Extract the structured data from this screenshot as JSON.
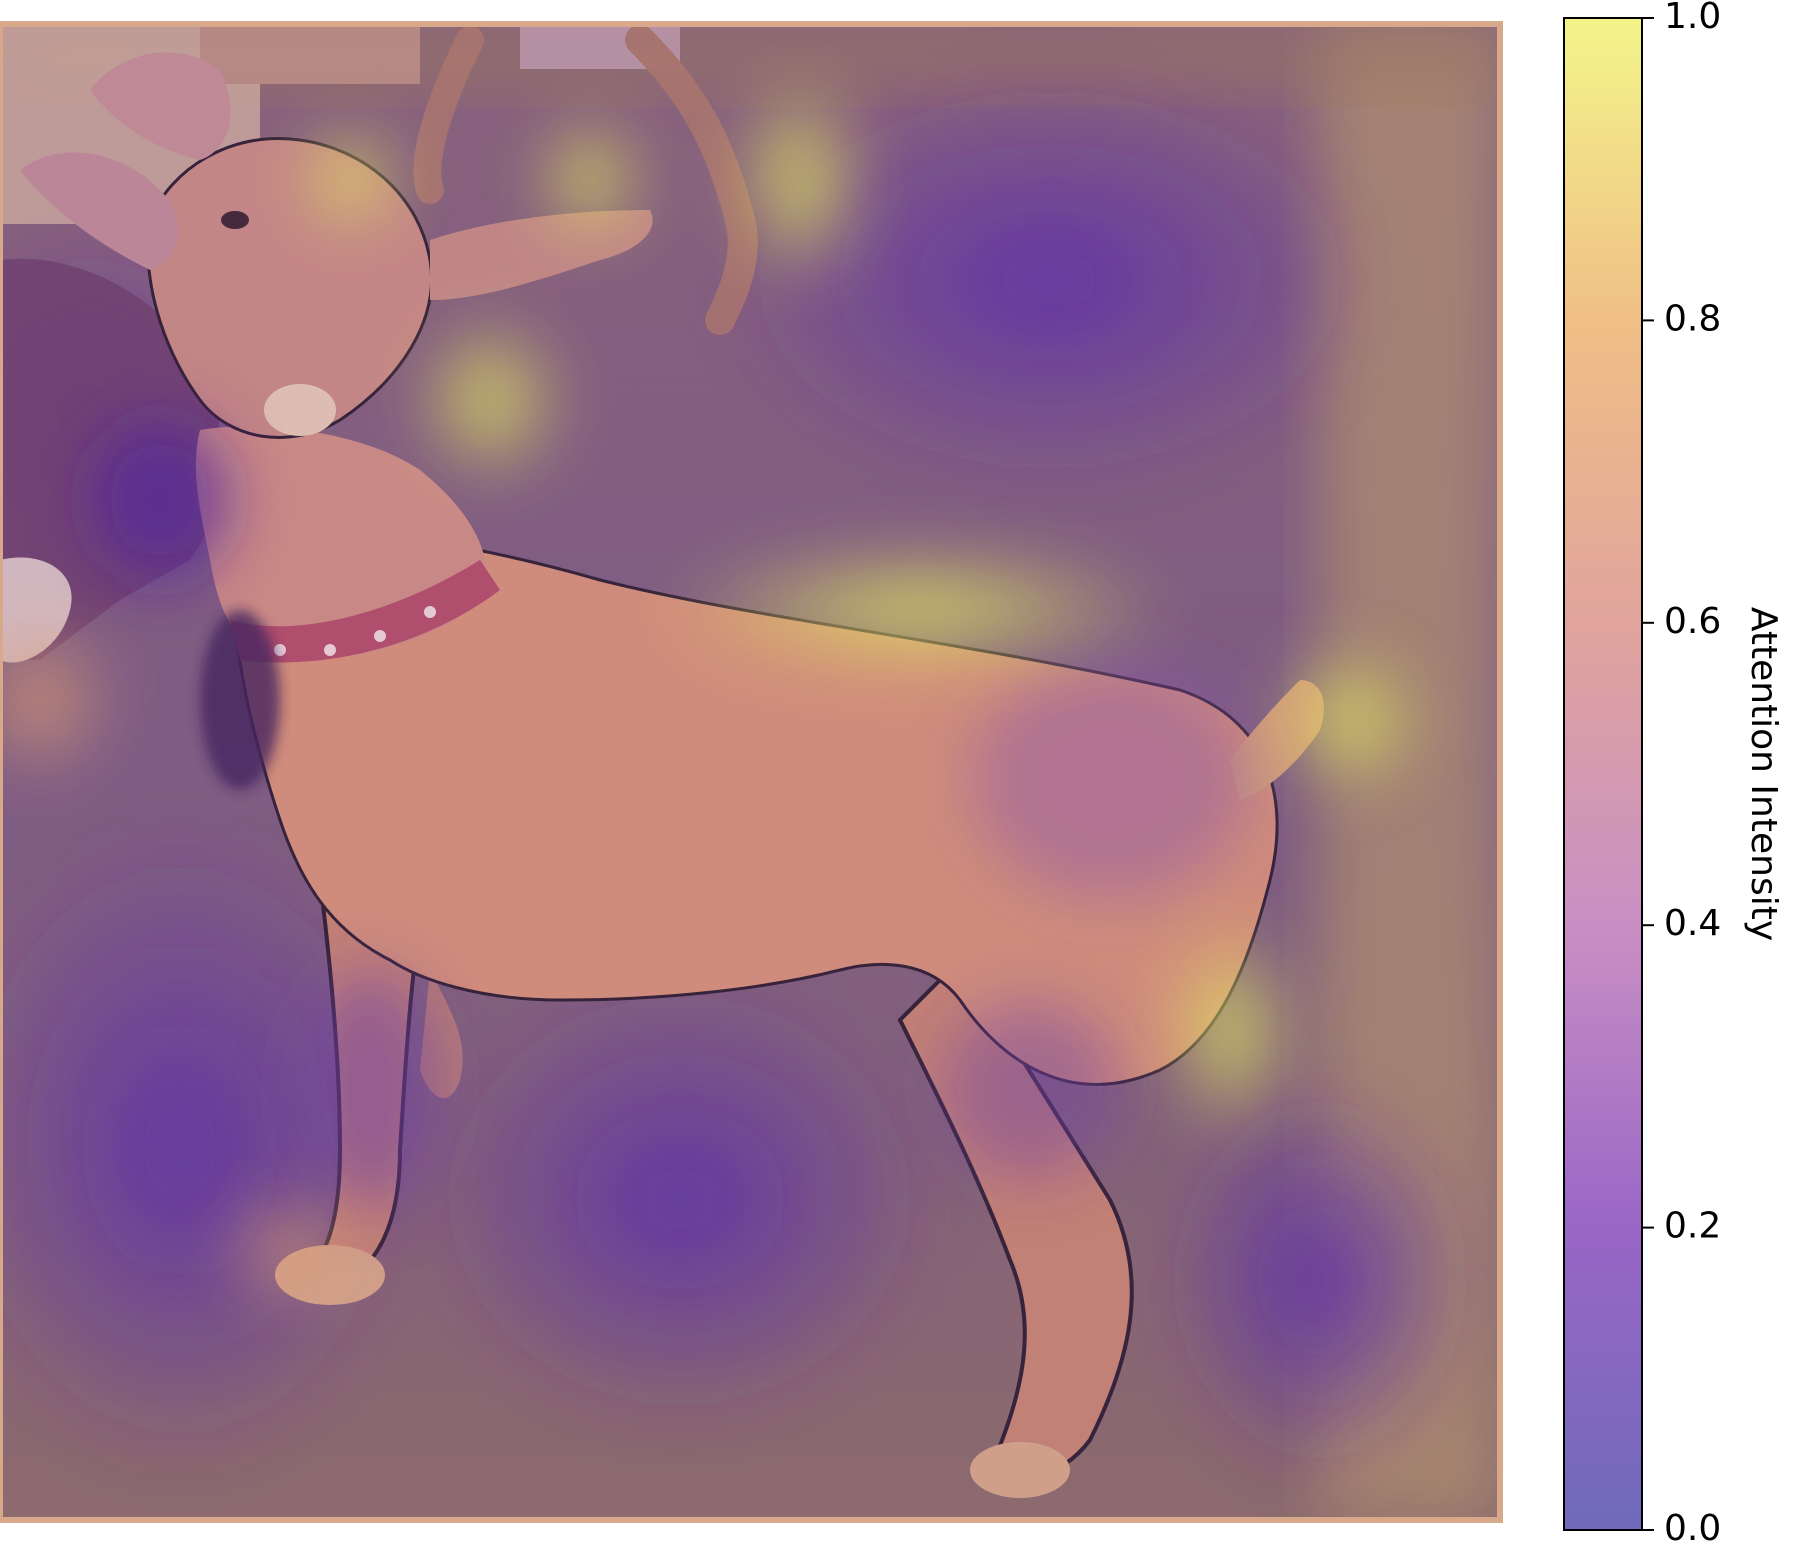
{
  "chart_data": {
    "type": "heatmap",
    "title": "",
    "colorbar": {
      "label": "Attention Intensity",
      "range": [
        0.0,
        1.0
      ],
      "ticks": [
        0.0,
        0.2,
        0.4,
        0.6,
        0.8,
        1.0
      ],
      "tick_labels": [
        "0.0",
        "0.2",
        "0.4",
        "0.6",
        "0.8",
        "1.0"
      ],
      "colormap_stops": [
        "#2a1aa0",
        "#7a30c0",
        "#b36dc8",
        "#d9939c",
        "#f3b86e",
        "#f6ef5c"
      ],
      "overlay_alpha": 0.6
    },
    "axes_visible": false,
    "background_image": "dog photograph overlaid with attention heatmap"
  },
  "colors": {
    "heat_low": "#5a2e9a",
    "heat_mid": "#c98a8a",
    "heat_high": "#e9e45a",
    "dog_body": "#d4927c"
  }
}
